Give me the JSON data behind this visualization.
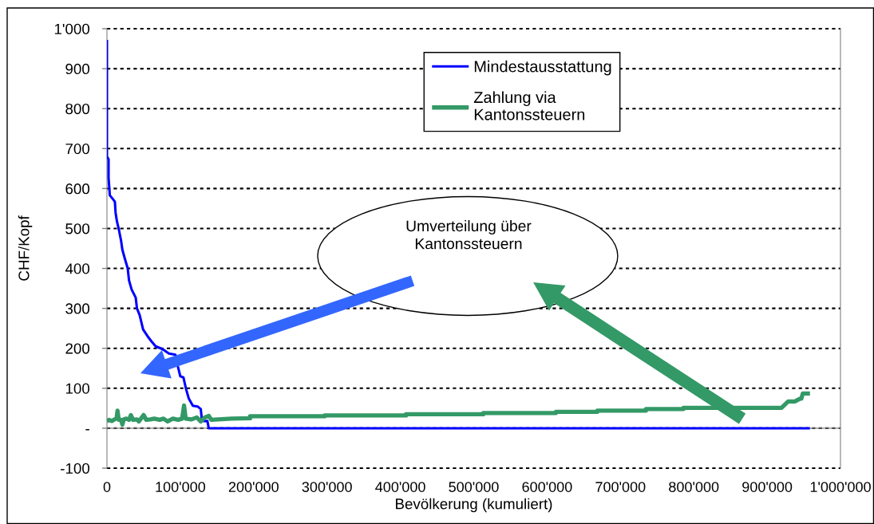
{
  "chart_data": {
    "type": "line",
    "xlabel": "Bevölkerung (kumuliert)",
    "ylabel": "CHF/Kopf",
    "xlim": [
      0,
      1000000
    ],
    "ylim": [
      -100,
      1000
    ],
    "xticks": [
      0,
      {
        "value": 100000,
        "label": "100'000"
      },
      {
        "value": 200000,
        "label": "200'000"
      },
      {
        "value": 300000,
        "label": "300'000"
      },
      {
        "value": 400000,
        "label": "400'000"
      },
      {
        "value": 500000,
        "label": "500'000"
      },
      {
        "value": 600000,
        "label": "600'000"
      },
      {
        "value": 700000,
        "label": "700'000"
      },
      {
        "value": 800000,
        "label": "800'000"
      },
      {
        "value": 900000,
        "label": "900'000"
      },
      {
        "value": 1000000,
        "label": "1'000'000"
      }
    ],
    "yticks": [
      -100,
      {
        "value": 0,
        "label": "-"
      },
      100,
      200,
      300,
      400,
      500,
      600,
      700,
      800,
      900,
      {
        "value": 1000,
        "label": "1'000"
      }
    ],
    "grid": "y",
    "legend": "top",
    "annotations": [
      "Umverteilung über\nKantonssteuern"
    ],
    "series": [
      {
        "name": "Mindestausstattung",
        "color": "#0000ff",
        "x": [
          0,
          0,
          2200,
          2200,
          3900,
          8300,
          10800,
          11800,
          13700,
          16300,
          18200,
          19200,
          21000,
          24600,
          28300,
          30100,
          33700,
          39200,
          40900,
          44600,
          49300,
          55500,
          60900,
          66400,
          71800,
          78200,
          84400,
          93400,
          96800,
          100000,
          104300,
          107600,
          111600,
          117100,
          123900,
          127900,
          129400,
          131500,
          136900,
          138800,
          958400
        ],
        "values": [
          972,
          680,
          673,
          627,
          583,
          573,
          567,
          539,
          517,
          497,
          479,
          470,
          447,
          423,
          400,
          370,
          347,
          327,
          300,
          283,
          247,
          230,
          217,
          205,
          201,
          195,
          187,
          184,
          154,
          130,
          127,
          100,
          74,
          56,
          54,
          48,
          21,
          18,
          18,
          0,
          0
        ]
      },
      {
        "name": "Zahlung via\nKantonssteuern",
        "color": "#339966",
        "x": [
          0,
          2900,
          6500,
          10100,
          13100,
          14400,
          16000,
          19200,
          21000,
          22900,
          26400,
          30100,
          32600,
          35500,
          40900,
          43500,
          46400,
          50000,
          53600,
          59000,
          64500,
          71800,
          77100,
          82600,
          89900,
          97100,
          102500,
          105100,
          107300,
          115200,
          122500,
          127900,
          133400,
          138800,
          142300,
          169600,
          195100,
          195100,
          296700,
          296700,
          407600,
          407600,
          513000,
          513000,
          612000,
          612000,
          668500,
          668500,
          734800,
          734800,
          785900,
          785900,
          919600,
          928600,
          937700,
          944900,
          946700,
          948600,
          958400
        ],
        "values": [
          17,
          21,
          18,
          22,
          24,
          44,
          21,
          21,
          9,
          22,
          24,
          21,
          33,
          21,
          22,
          17,
          24,
          33,
          21,
          22,
          24,
          21,
          24,
          17,
          24,
          21,
          24,
          57,
          24,
          22,
          27,
          17,
          27,
          31,
          21,
          24,
          25,
          30,
          30,
          32,
          32,
          35,
          35,
          38,
          38,
          41,
          41,
          44,
          44,
          48,
          48,
          51,
          51,
          67,
          67,
          74,
          74,
          87,
          87
        ]
      }
    ]
  }
}
